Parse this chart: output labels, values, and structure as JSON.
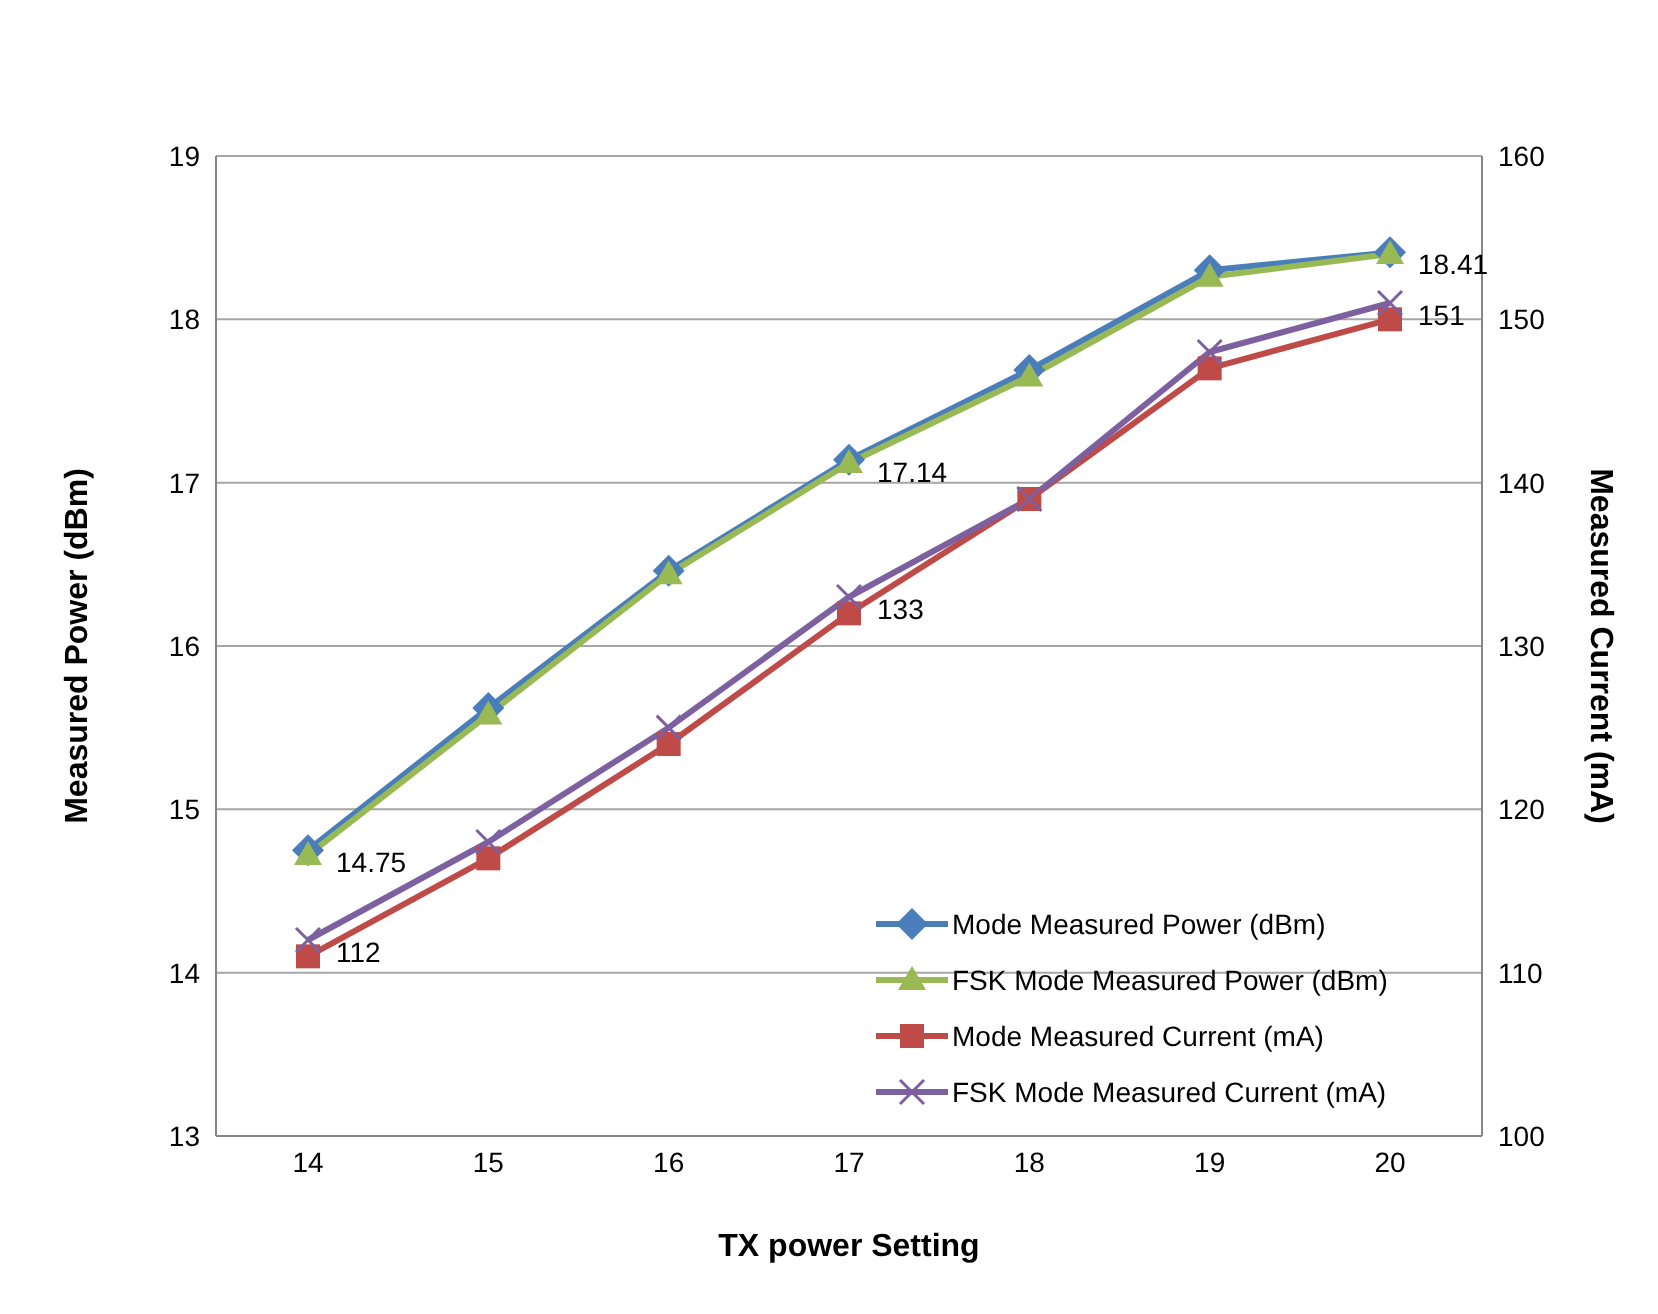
{
  "chart_data": {
    "type": "line",
    "xlabel": "TX power Setting",
    "ylabel": "Measured Power (dBm)",
    "y2label": "Measured Current (mA)",
    "categories": [
      "14",
      "15",
      "16",
      "17",
      "18",
      "19",
      "20"
    ],
    "series": [
      {
        "name": "Mode Measured Power (dBm)",
        "color": "#4a7ebb",
        "marker": "diamond",
        "values": [
          14.75,
          15.62,
          16.46,
          17.14,
          17.69,
          18.3,
          18.41
        ],
        "value_labels": [
          "14.75",
          null,
          null,
          "17.14",
          null,
          null,
          "18.41"
        ]
      },
      {
        "name": "FSK Mode Measured Power (dBm)",
        "color": "#98b954",
        "marker": "triangle",
        "values": [
          14.72,
          15.58,
          16.44,
          17.12,
          17.65,
          18.26,
          18.4
        ]
      },
      {
        "name": "Mode Measured Current (mA)",
        "color": "#be4b48",
        "marker": "square",
        "axis": "y2",
        "values": [
          111,
          117,
          124,
          132,
          139,
          147,
          150
        ]
      },
      {
        "name": "FSK Mode Measured Current (mA)",
        "color": "#7d60a0",
        "marker": "cross",
        "axis": "y2",
        "values": [
          112,
          118,
          125,
          133,
          139,
          148,
          151
        ],
        "value_labels": [
          "112",
          null,
          null,
          "133",
          null,
          null,
          "151"
        ]
      }
    ],
    "ylim": [
      13,
      19
    ],
    "yticks": [
      13,
      14,
      15,
      16,
      17,
      18,
      19
    ],
    "y2lim": [
      100,
      160
    ],
    "y2ticks": [
      100,
      110,
      120,
      130,
      140,
      150,
      160
    ],
    "grid": "y",
    "legend": "bottom right",
    "line_style": "solid"
  }
}
